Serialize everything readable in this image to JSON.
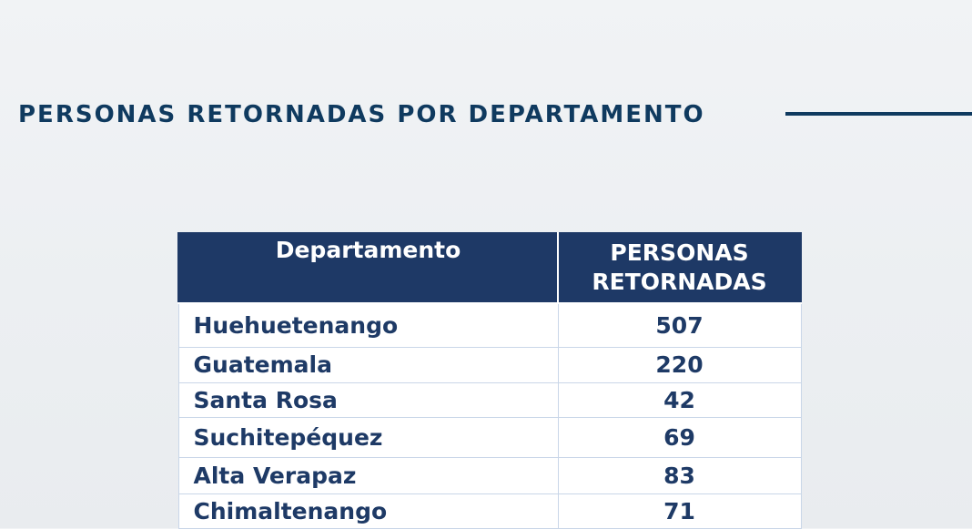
{
  "header": {
    "title": "PERSONAS RETORNADAS POR DEPARTAMENTO"
  },
  "table": {
    "columns": [
      "Departamento",
      "PERSONAS RETORNADAS"
    ],
    "rows": [
      {
        "departamento": "Huehuetenango",
        "personas": "507"
      },
      {
        "departamento": "Guatemala",
        "personas": "220"
      },
      {
        "departamento": "Santa Rosa",
        "personas": "42"
      },
      {
        "departamento": "Suchitepéquez",
        "personas": "69"
      },
      {
        "departamento": "Alta Verapaz",
        "personas": "83"
      },
      {
        "departamento": "Chimaltenango",
        "personas": "71"
      }
    ]
  },
  "colors": {
    "title_text": "#0f3a5f",
    "header_background": "#1e3966",
    "header_text": "#ffffff",
    "body_text": "#1e3a66"
  }
}
